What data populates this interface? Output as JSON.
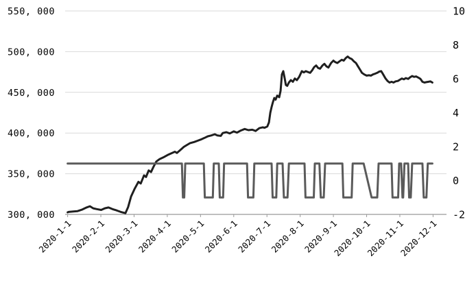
{
  "chart": {
    "title": "",
    "background": "#ffffff",
    "colors": {
      "primary_series": "#1f1f1f",
      "secondary_series": "#5a5a5a",
      "gridline": "#d9d9d9",
      "axis_line": "#999999",
      "label_text": "#000000"
    }
  },
  "chart_data": {
    "type": "line",
    "title": "",
    "grid": "horizontal",
    "legend": "none",
    "x_axis": {
      "labels": [
        "2020-1-1",
        "2020-2-1",
        "2020-3-1",
        "2020-4-1",
        "2020-5-1",
        "2020-6-1",
        "2020-7-1",
        "2020-8-1",
        "2020-9-1",
        "2020-10-1",
        "2020-11-1",
        "2020-12-1"
      ],
      "range": [
        1,
        12
      ]
    },
    "y_axis_left": {
      "min": 300000,
      "max": 550000,
      "step": 50000,
      "tick_labels": [
        "550, 000",
        "500, 000",
        "450, 000",
        "400, 000",
        "350, 000",
        "300, 000"
      ]
    },
    "y_axis_right": {
      "min": -2,
      "max": 10,
      "step": 2,
      "tick_labels": [
        "10",
        "8",
        "6",
        "4",
        "2",
        "0",
        "-2"
      ]
    },
    "series": [
      {
        "name": "primary-line",
        "axis": "left",
        "points": [
          [
            1.0,
            302500
          ],
          [
            1.03,
            303000
          ],
          [
            1.17,
            303500
          ],
          [
            1.3,
            304000
          ],
          [
            1.44,
            306000
          ],
          [
            1.57,
            308500
          ],
          [
            1.67,
            310000
          ],
          [
            1.77,
            307500
          ],
          [
            1.88,
            306500
          ],
          [
            2.01,
            305500
          ],
          [
            2.12,
            307500
          ],
          [
            2.23,
            308500
          ],
          [
            2.35,
            306500
          ],
          [
            2.47,
            305000
          ],
          [
            2.6,
            303000
          ],
          [
            2.74,
            301500
          ],
          [
            2.82,
            309000
          ],
          [
            2.91,
            322000
          ],
          [
            3.01,
            331000
          ],
          [
            3.13,
            340000
          ],
          [
            3.2,
            338000
          ],
          [
            3.3,
            348000
          ],
          [
            3.36,
            346000
          ],
          [
            3.44,
            354000
          ],
          [
            3.51,
            352000
          ],
          [
            3.59,
            359000
          ],
          [
            3.67,
            365000
          ],
          [
            3.77,
            368000
          ],
          [
            3.88,
            370000
          ],
          [
            4.01,
            373000
          ],
          [
            4.12,
            375000
          ],
          [
            4.23,
            377000
          ],
          [
            4.29,
            375500
          ],
          [
            4.39,
            379000
          ],
          [
            4.5,
            383000
          ],
          [
            4.58,
            385000
          ],
          [
            4.68,
            387500
          ],
          [
            4.81,
            389000
          ],
          [
            4.91,
            390500
          ],
          [
            5.01,
            392000
          ],
          [
            5.12,
            394000
          ],
          [
            5.22,
            396000
          ],
          [
            5.32,
            397000
          ],
          [
            5.43,
            398500
          ],
          [
            5.51,
            397000
          ],
          [
            5.61,
            396500
          ],
          [
            5.67,
            400000
          ],
          [
            5.78,
            401000
          ],
          [
            5.88,
            399500
          ],
          [
            6.0,
            402000
          ],
          [
            6.1,
            400500
          ],
          [
            6.21,
            403000
          ],
          [
            6.33,
            405000
          ],
          [
            6.44,
            403500
          ],
          [
            6.56,
            404000
          ],
          [
            6.66,
            402500
          ],
          [
            6.77,
            406000
          ],
          [
            6.87,
            407000
          ],
          [
            6.93,
            406500
          ],
          [
            7.01,
            408000
          ],
          [
            7.06,
            413000
          ],
          [
            7.1,
            425000
          ],
          [
            7.14,
            432000
          ],
          [
            7.18,
            438000
          ],
          [
            7.22,
            443000
          ],
          [
            7.26,
            441000
          ],
          [
            7.31,
            446000
          ],
          [
            7.37,
            444000
          ],
          [
            7.41,
            452000
          ],
          [
            7.45,
            472000
          ],
          [
            7.49,
            476000
          ],
          [
            7.53,
            468000
          ],
          [
            7.57,
            459000
          ],
          [
            7.61,
            458000
          ],
          [
            7.66,
            462000
          ],
          [
            7.72,
            465000
          ],
          [
            7.78,
            463000
          ],
          [
            7.84,
            467000
          ],
          [
            7.9,
            465000
          ],
          [
            7.97,
            469000
          ],
          [
            8.05,
            476000
          ],
          [
            8.11,
            474500
          ],
          [
            8.17,
            476000
          ],
          [
            8.23,
            475000
          ],
          [
            8.3,
            474000
          ],
          [
            8.36,
            477000
          ],
          [
            8.42,
            481000
          ],
          [
            8.48,
            483000
          ],
          [
            8.54,
            480000
          ],
          [
            8.6,
            479000
          ],
          [
            8.67,
            483000
          ],
          [
            8.73,
            485000
          ],
          [
            8.79,
            482000
          ],
          [
            8.85,
            480500
          ],
          [
            8.93,
            486000
          ],
          [
            9.0,
            489000
          ],
          [
            9.06,
            487000
          ],
          [
            9.12,
            486000
          ],
          [
            9.18,
            488000
          ],
          [
            9.25,
            490000
          ],
          [
            9.31,
            489000
          ],
          [
            9.37,
            492000
          ],
          [
            9.43,
            494000
          ],
          [
            9.49,
            492000
          ],
          [
            9.55,
            491000
          ],
          [
            9.62,
            488000
          ],
          [
            9.68,
            486000
          ],
          [
            9.74,
            482000
          ],
          [
            9.8,
            478000
          ],
          [
            9.86,
            474000
          ],
          [
            9.93,
            472000
          ],
          [
            10.0,
            470500
          ],
          [
            10.07,
            471000
          ],
          [
            10.13,
            470500
          ],
          [
            10.19,
            472000
          ],
          [
            10.26,
            473000
          ],
          [
            10.32,
            474000
          ],
          [
            10.38,
            475500
          ],
          [
            10.44,
            476000
          ],
          [
            10.5,
            472000
          ],
          [
            10.57,
            467000
          ],
          [
            10.63,
            464000
          ],
          [
            10.69,
            462000
          ],
          [
            10.75,
            463000
          ],
          [
            10.81,
            462000
          ],
          [
            10.87,
            463500
          ],
          [
            10.94,
            464000
          ],
          [
            11.0,
            465500
          ],
          [
            11.06,
            467000
          ],
          [
            11.12,
            466000
          ],
          [
            11.18,
            467500
          ],
          [
            11.25,
            466500
          ],
          [
            11.31,
            468500
          ],
          [
            11.37,
            470000
          ],
          [
            11.43,
            469000
          ],
          [
            11.49,
            469500
          ],
          [
            11.56,
            468000
          ],
          [
            11.62,
            466500
          ],
          [
            11.68,
            463000
          ],
          [
            11.74,
            462000
          ],
          [
            11.8,
            462500
          ],
          [
            11.86,
            463000
          ],
          [
            11.92,
            463500
          ],
          [
            11.98,
            462000
          ]
        ]
      },
      {
        "name": "secondary-square-wave",
        "axis": "right",
        "points": [
          [
            1.0,
            1
          ],
          [
            4.44,
            1
          ],
          [
            4.47,
            -1
          ],
          [
            4.51,
            -1
          ],
          [
            4.54,
            1
          ],
          [
            5.1,
            1
          ],
          [
            5.13,
            -1
          ],
          [
            5.37,
            -1
          ],
          [
            5.4,
            1
          ],
          [
            5.55,
            1
          ],
          [
            5.58,
            -1
          ],
          [
            5.68,
            -1
          ],
          [
            5.71,
            1
          ],
          [
            6.4,
            1
          ],
          [
            6.43,
            -1
          ],
          [
            6.59,
            -1
          ],
          [
            6.62,
            1
          ],
          [
            7.14,
            1
          ],
          [
            7.17,
            -1
          ],
          [
            7.28,
            -1
          ],
          [
            7.31,
            1
          ],
          [
            7.47,
            1
          ],
          [
            7.51,
            -1
          ],
          [
            7.62,
            -1
          ],
          [
            7.66,
            1
          ],
          [
            8.13,
            1
          ],
          [
            8.16,
            -1
          ],
          [
            8.41,
            -1
          ],
          [
            8.44,
            1
          ],
          [
            8.58,
            1
          ],
          [
            8.62,
            -1
          ],
          [
            8.71,
            -1
          ],
          [
            8.75,
            1
          ],
          [
            9.27,
            1
          ],
          [
            9.3,
            -1
          ],
          [
            9.55,
            -1
          ],
          [
            9.58,
            1
          ],
          [
            9.91,
            1
          ],
          [
            10.15,
            -1
          ],
          [
            10.32,
            -1
          ],
          [
            10.36,
            1
          ],
          [
            10.75,
            1
          ],
          [
            10.78,
            -1
          ],
          [
            10.95,
            -1
          ],
          [
            10.98,
            1
          ],
          [
            11.04,
            1
          ],
          [
            11.08,
            -1
          ],
          [
            11.1,
            -1
          ],
          [
            11.14,
            1
          ],
          [
            11.25,
            1
          ],
          [
            11.28,
            -1
          ],
          [
            11.33,
            -1
          ],
          [
            11.37,
            1
          ],
          [
            11.68,
            1
          ],
          [
            11.72,
            -1
          ],
          [
            11.8,
            -1
          ],
          [
            11.84,
            1
          ],
          [
            11.98,
            1
          ]
        ]
      }
    ]
  }
}
